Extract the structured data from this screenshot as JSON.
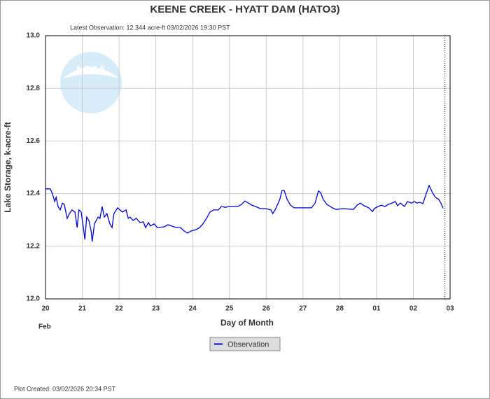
{
  "chart_data": {
    "type": "line",
    "title": "KEENE CREEK - HYATT DAM  (HATO3)",
    "subtitle": "Latest Observation: 12.344 acre-ft 03/02/2026 19:30 PST",
    "watermark": "NOAA",
    "y_label": "Lake Storage, k-acre-ft",
    "x_label": "Day of Month",
    "x_month_label": "Feb",
    "footer": "Plot Created: 03/02/2026 20:34 PST",
    "grid": true,
    "legend": "bottom",
    "current_time_x": 10.86,
    "xlim": [
      0,
      11
    ],
    "xticks": [
      {
        "value": 0,
        "label": "20"
      },
      {
        "value": 1,
        "label": "21"
      },
      {
        "value": 2,
        "label": "22"
      },
      {
        "value": 3,
        "label": "23"
      },
      {
        "value": 4,
        "label": "24"
      },
      {
        "value": 5,
        "label": "25"
      },
      {
        "value": 6,
        "label": "26"
      },
      {
        "value": 7,
        "label": "27"
      },
      {
        "value": 8,
        "label": "28"
      },
      {
        "value": 9,
        "label": "01"
      },
      {
        "value": 10,
        "label": "02"
      },
      {
        "value": 11,
        "label": "03"
      }
    ],
    "ylim": [
      12,
      13
    ],
    "yticks": [
      {
        "value": 12,
        "label": "12.0"
      },
      12.2,
      12.4,
      12.6,
      12.8,
      {
        "value": 13,
        "label": "13.0"
      }
    ],
    "x": [
      0.0,
      0.13,
      0.19,
      0.25,
      0.29,
      0.34,
      0.4,
      0.46,
      0.51,
      0.59,
      0.65,
      0.72,
      0.8,
      0.86,
      0.91,
      0.97,
      1.03,
      1.07,
      1.12,
      1.18,
      1.24,
      1.27,
      1.33,
      1.43,
      1.48,
      1.54,
      1.6,
      1.67,
      1.75,
      1.81,
      1.86,
      1.96,
      2.09,
      2.19,
      2.25,
      2.3,
      2.38,
      2.47,
      2.57,
      2.66,
      2.72,
      2.8,
      2.85,
      2.95,
      3.04,
      3.23,
      3.33,
      3.43,
      3.56,
      3.67,
      3.77,
      3.86,
      3.96,
      4.09,
      4.19,
      4.28,
      4.38,
      4.47,
      4.57,
      4.7,
      4.78,
      4.89,
      4.99,
      5.14,
      5.23,
      5.33,
      5.42,
      5.52,
      5.61,
      5.71,
      5.84,
      5.99,
      6.13,
      6.18,
      6.26,
      6.37,
      6.43,
      6.49,
      6.57,
      6.66,
      6.76,
      6.91,
      7.04,
      7.23,
      7.33,
      7.42,
      7.48,
      7.55,
      7.65,
      7.8,
      7.9,
      8.09,
      8.37,
      8.47,
      8.56,
      8.66,
      8.79,
      8.89,
      8.94,
      9.04,
      9.13,
      9.23,
      9.32,
      9.42,
      9.51,
      9.57,
      9.65,
      9.76,
      9.84,
      9.95,
      10.03,
      10.1,
      10.18,
      10.26,
      10.33,
      10.43,
      10.52,
      10.6,
      10.69,
      10.75,
      10.81
    ],
    "series": [
      {
        "name": "Observation",
        "color": "#0000cc",
        "values": [
          12.418,
          12.418,
          12.399,
          12.37,
          12.386,
          12.351,
          12.338,
          12.364,
          12.359,
          12.306,
          12.324,
          12.338,
          12.33,
          12.271,
          12.338,
          12.33,
          12.271,
          12.226,
          12.311,
          12.298,
          12.258,
          12.218,
          12.285,
          12.311,
          12.306,
          12.351,
          12.311,
          12.324,
          12.285,
          12.271,
          12.324,
          12.346,
          12.33,
          12.338,
          12.306,
          12.311,
          12.298,
          12.306,
          12.29,
          12.293,
          12.271,
          12.29,
          12.277,
          12.285,
          12.271,
          12.274,
          12.282,
          12.277,
          12.271,
          12.271,
          12.258,
          12.25,
          12.258,
          12.263,
          12.271,
          12.285,
          12.306,
          12.33,
          12.338,
          12.338,
          12.351,
          12.348,
          12.351,
          12.351,
          12.351,
          12.359,
          12.372,
          12.364,
          12.356,
          12.351,
          12.343,
          12.343,
          12.338,
          12.324,
          12.343,
          12.378,
          12.412,
          12.412,
          12.378,
          12.356,
          12.346,
          12.346,
          12.346,
          12.346,
          12.364,
          12.41,
          12.404,
          12.378,
          12.359,
          12.346,
          12.34,
          12.343,
          12.34,
          12.356,
          12.364,
          12.354,
          12.346,
          12.332,
          12.343,
          12.351,
          12.356,
          12.351,
          12.359,
          12.364,
          12.37,
          12.354,
          12.364,
          12.351,
          12.37,
          12.364,
          12.37,
          12.364,
          12.367,
          12.362,
          12.391,
          12.431,
          12.404,
          12.386,
          12.378,
          12.364,
          12.344
        ]
      }
    ]
  }
}
